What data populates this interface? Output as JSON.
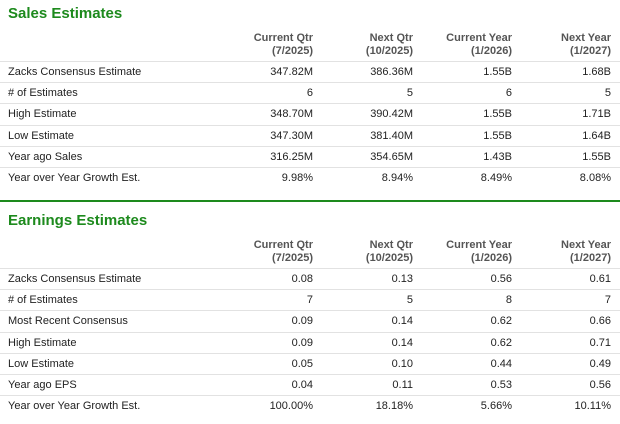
{
  "sections": [
    {
      "title": "Sales Estimates",
      "columns": [
        {
          "name": "Current Qtr",
          "period": "(7/2025)"
        },
        {
          "name": "Next Qtr",
          "period": "(10/2025)"
        },
        {
          "name": "Current Year",
          "period": "(1/2026)"
        },
        {
          "name": "Next Year",
          "period": "(1/2027)"
        }
      ],
      "rows": [
        {
          "label": "Zacks Consensus Estimate",
          "cells": [
            "347.82M",
            "386.36M",
            "1.55B",
            "1.68B"
          ]
        },
        {
          "label": "# of Estimates",
          "cells": [
            "6",
            "5",
            "6",
            "5"
          ]
        },
        {
          "label": "High Estimate",
          "cells": [
            "348.70M",
            "390.42M",
            "1.55B",
            "1.71B"
          ]
        },
        {
          "label": "Low Estimate",
          "cells": [
            "347.30M",
            "381.40M",
            "1.55B",
            "1.64B"
          ]
        },
        {
          "label": "Year ago Sales",
          "cells": [
            "316.25M",
            "354.65M",
            "1.43B",
            "1.55B"
          ]
        },
        {
          "label": "Year over Year Growth Est.",
          "cells": [
            "9.98%",
            "8.94%",
            "8.49%",
            "8.08%"
          ]
        }
      ]
    },
    {
      "title": "Earnings Estimates",
      "columns": [
        {
          "name": "Current Qtr",
          "period": "(7/2025)"
        },
        {
          "name": "Next Qtr",
          "period": "(10/2025)"
        },
        {
          "name": "Current Year",
          "period": "(1/2026)"
        },
        {
          "name": "Next Year",
          "period": "(1/2027)"
        }
      ],
      "rows": [
        {
          "label": "Zacks Consensus Estimate",
          "cells": [
            "0.08",
            "0.13",
            "0.56",
            "0.61"
          ]
        },
        {
          "label": "# of Estimates",
          "cells": [
            "7",
            "5",
            "8",
            "7"
          ]
        },
        {
          "label": "Most Recent Consensus",
          "cells": [
            "0.09",
            "0.14",
            "0.62",
            "0.66"
          ]
        },
        {
          "label": "High Estimate",
          "cells": [
            "0.09",
            "0.14",
            "0.62",
            "0.71"
          ]
        },
        {
          "label": "Low Estimate",
          "cells": [
            "0.05",
            "0.10",
            "0.44",
            "0.49"
          ]
        },
        {
          "label": "Year ago EPS",
          "cells": [
            "0.04",
            "0.11",
            "0.53",
            "0.56"
          ]
        },
        {
          "label": "Year over Year Growth Est.",
          "cells": [
            "100.00%",
            "18.18%",
            "5.66%",
            "10.11%"
          ]
        }
      ]
    }
  ]
}
